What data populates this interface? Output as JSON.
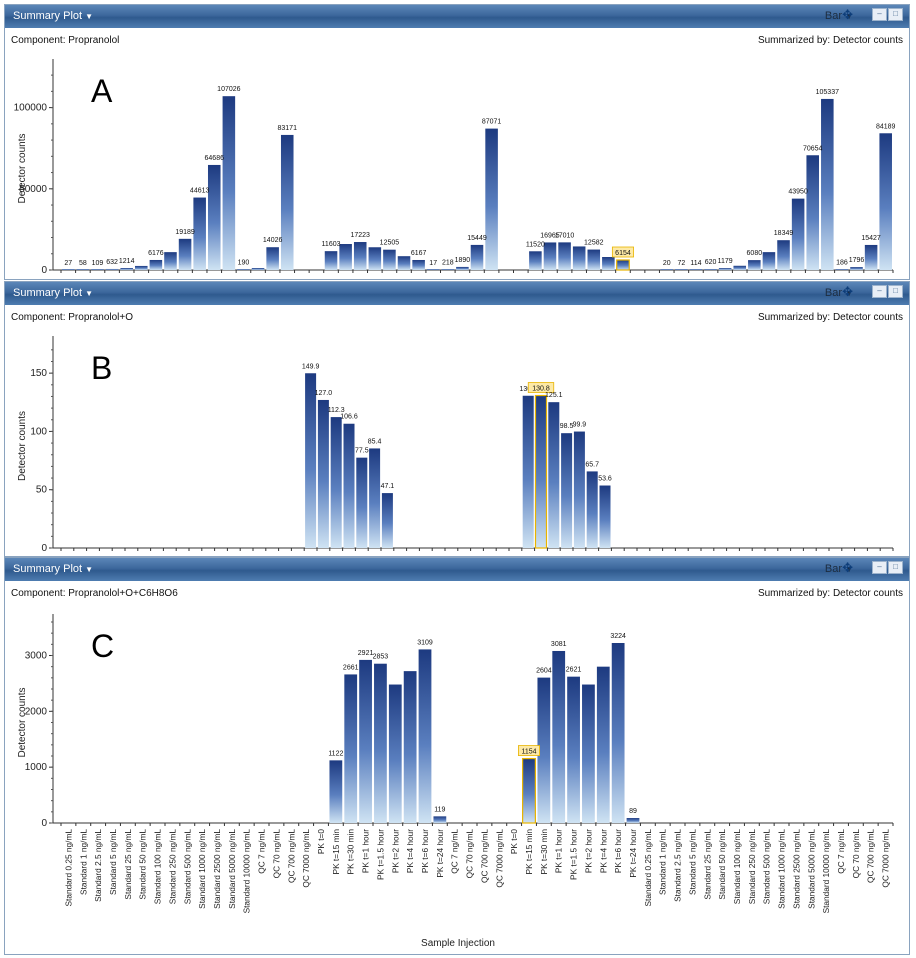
{
  "panels": [
    {
      "id": "A",
      "title": "Summary Plot",
      "type_menu": "Bar",
      "component_label": "Component: Propranolol",
      "summarized_by": "Summarized by: Detector counts",
      "panel_letter": "A",
      "ylabel": "Detector counts",
      "chart_data": {
        "type": "bar",
        "ylim": [
          0,
          125000
        ],
        "yticks": [
          0,
          50000,
          100000
        ],
        "highlight_index": 38,
        "values": [
          27,
          58,
          109,
          632,
          1214,
          2500,
          6176,
          11000,
          19189,
          44613,
          64686,
          107026,
          190,
          1200,
          14026,
          83171,
          null,
          null,
          11603,
          16000,
          17223,
          14000,
          12505,
          8500,
          6167,
          17,
          218,
          1890,
          15449,
          87071,
          null,
          null,
          11520,
          16965,
          17010,
          14500,
          12582,
          8000,
          6154,
          null,
          null,
          20,
          72,
          114,
          620,
          1179,
          2600,
          6080,
          11000,
          18349,
          43950,
          70654,
          105337,
          186,
          1796,
          15427,
          84189
        ],
        "labels": [
          "27",
          "58",
          "109",
          "632",
          "1214",
          "",
          "6176",
          "",
          "19189",
          "44613",
          "64686",
          "107026",
          "190",
          "",
          "14026",
          "83171",
          "",
          "",
          "11603",
          "",
          "17223",
          "",
          "12505",
          "",
          "6167",
          "17",
          "218",
          "1890",
          "15449",
          "87071",
          "",
          "",
          "11520",
          "16965",
          "17010",
          "",
          "12582",
          "",
          "6154",
          "",
          "",
          "20",
          "72",
          "114",
          "620",
          "1179",
          "",
          "6080",
          "",
          "18349",
          "43950",
          "70654",
          "105337",
          "186",
          "1796",
          "15427",
          "84189"
        ]
      }
    },
    {
      "id": "B",
      "title": "Summary Plot",
      "type_menu": "Bar",
      "component_label": "Component: Propranolol+O",
      "summarized_by": "Summarized by: Detector counts",
      "panel_letter": "B",
      "ylabel": "Detector counts",
      "chart_data": {
        "type": "bar",
        "ylim": [
          0,
          175
        ],
        "yticks": [
          0,
          50,
          100,
          150
        ],
        "highlight_index": 37,
        "values": [
          null,
          null,
          null,
          null,
          null,
          null,
          null,
          null,
          null,
          null,
          null,
          null,
          null,
          null,
          null,
          null,
          null,
          null,
          null,
          149.9,
          127.0,
          112.3,
          106.6,
          77.5,
          85.4,
          47.1,
          null,
          null,
          null,
          null,
          null,
          null,
          null,
          null,
          null,
          null,
          130.6,
          130.8,
          125.1,
          98.5,
          99.9,
          65.7,
          53.6,
          null,
          null,
          null,
          null,
          null,
          null,
          null,
          null,
          null,
          null,
          null,
          null,
          null,
          null,
          null,
          null,
          null,
          null,
          null,
          null,
          null,
          null
        ],
        "labels": [
          "",
          "",
          "",
          "",
          "",
          "",
          "",
          "",
          "",
          "",
          "",
          "",
          "",
          "",
          "",
          "",
          "",
          "",
          "",
          "149.9",
          "127.0",
          "112.3",
          "106.6",
          "77.5",
          "85.4",
          "47.1",
          "",
          "",
          "",
          "",
          "",
          "",
          "",
          "",
          "",
          "",
          "130.6",
          "130.8",
          "125.1",
          "98.5",
          "99.9",
          "65.7",
          "53.6",
          "",
          "",
          "",
          "",
          "",
          "",
          "",
          "",
          "",
          "",
          "",
          "",
          "",
          "",
          "",
          "",
          "",
          "",
          "",
          "",
          "",
          ""
        ]
      }
    },
    {
      "id": "C",
      "title": "Summary Plot",
      "type_menu": "Bar",
      "component_label": "Component: Propranolol+O+C6H8O6",
      "summarized_by": "Summarized by: Detector counts",
      "panel_letter": "C",
      "ylabel": "Detector counts",
      "xlabel": "Sample Injection",
      "chart_data": {
        "type": "bar",
        "ylim": [
          0,
          3600
        ],
        "yticks": [
          0,
          1000,
          2000,
          3000
        ],
        "highlight_index": 31,
        "categories": [
          "Standard 0.25 ng/mL",
          "Standard 1 ng/mL",
          "Standard 2.5 ng/mL",
          "Standard 5 ng/mL",
          "Standard 25 ng/mL",
          "Standard 50 ng/mL",
          "Standard 100 ng/mL",
          "Standard 250 ng/mL",
          "Standard 500 ng/mL",
          "Standard 1000 ng/mL",
          "Standard 2500 ng/mL",
          "Standard 5000 ng/mL",
          "Standard 10000 ng/mL",
          "QC 7 ng/mL",
          "QC 70 ng/mL",
          "QC 700 ng/mL",
          "QC 7000 ng/mL",
          "PK t=0",
          "PK t=15 min",
          "PK t=30 min",
          "PK t=1 hour",
          "PK t=1.5 hour",
          "PK t=2 hour",
          "PK t=4 hour",
          "PK t=6 hour",
          "PK t=24 hour",
          "QC 7 ng/mL",
          "QC 70 ng/mL",
          "QC 700 ng/mL",
          "QC 7000 ng/mL",
          "PK t=0",
          "PK t=15 min",
          "PK t=30 min",
          "PK t=1 hour",
          "PK t=1.5 hour",
          "PK t=2 hour",
          "PK t=4 hour",
          "PK t=6 hour",
          "PK t=24 hour",
          "Standard 0.25 ng/mL",
          "Standard 1 ng/mL",
          "Standard 2.5 ng/mL",
          "Standard 5 ng/mL",
          "Standard 25 ng/mL",
          "Standard 50 ng/mL",
          "Standard 100 ng/mL",
          "Standard 250 ng/mL",
          "Standard 500 ng/mL",
          "Standard 1000 ng/mL",
          "Standard 2500 ng/mL",
          "Standard 5000 ng/mL",
          "Standard 10000 ng/mL",
          "QC 7 ng/mL",
          "QC 70 ng/mL",
          "QC 700 ng/mL",
          "QC 7000 ng/mL"
        ],
        "values": [
          null,
          null,
          null,
          null,
          null,
          null,
          null,
          null,
          null,
          null,
          null,
          null,
          null,
          null,
          null,
          null,
          null,
          null,
          1122,
          2661,
          2921,
          2853,
          2480,
          2720,
          3109,
          119,
          null,
          null,
          null,
          null,
          null,
          1154,
          2604,
          3081,
          2621,
          2480,
          2800,
          3224,
          89,
          null,
          null,
          null,
          null,
          null,
          null,
          null,
          null,
          null,
          null,
          null,
          null,
          null,
          null,
          null,
          null,
          null
        ],
        "labels": [
          "",
          "",
          "",
          "",
          "",
          "",
          "",
          "",
          "",
          "",
          "",
          "",
          "",
          "",
          "",
          "",
          "",
          "",
          "1122",
          "2661",
          "2921",
          "2853",
          "",
          "",
          "3109",
          "119",
          "",
          "",
          "",
          "",
          "",
          "1154",
          "2604",
          "3081",
          "2621",
          "",
          "",
          "3224",
          "89",
          "",
          "",
          "",
          "",
          "",
          "",
          "",
          "",
          "",
          "",
          "",
          "",
          "",
          "",
          "",
          "",
          ""
        ]
      }
    }
  ],
  "colors": {
    "bar_top": "#1d3a80",
    "bar_bottom": "#cfe3f3",
    "highlight": "#e8b400",
    "highlight_fill": "#fde9a6"
  }
}
